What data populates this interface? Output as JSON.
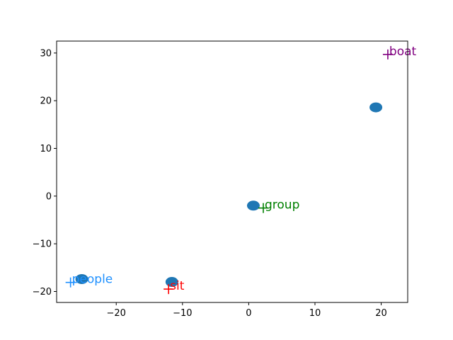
{
  "chart_data": {
    "type": "scatter",
    "title": "",
    "xlabel": "",
    "ylabel": "",
    "xlim": [
      -29,
      24
    ],
    "ylim": [
      -22.3,
      32.5
    ],
    "xticks": [
      -20,
      -10,
      0,
      10,
      20
    ],
    "yticks": [
      -20,
      -10,
      0,
      10,
      20,
      30
    ],
    "xtick_labels": [
      "−20",
      "−10",
      "0",
      "10",
      "20"
    ],
    "ytick_labels": [
      "−20",
      "−10",
      "0",
      "10",
      "20",
      "30"
    ],
    "grid": false,
    "legend": "none",
    "points": [
      {
        "x": -25.2,
        "y": -17.4
      },
      {
        "x": -11.6,
        "y": -18.0
      },
      {
        "x": 0.7,
        "y": -2.0
      },
      {
        "x": 19.2,
        "y": 18.6
      }
    ],
    "points_color": "#1f77b4",
    "words": [
      {
        "label": "people",
        "x": -26.9,
        "y": -18.1,
        "color": "#1e90ff"
      },
      {
        "label": "sit",
        "x": -12.1,
        "y": -19.5,
        "color": "#ff0000"
      },
      {
        "label": "group",
        "x": 2.2,
        "y": -2.5,
        "color": "#008000"
      },
      {
        "label": "boat",
        "x": 21.0,
        "y": 29.7,
        "color": "#800080"
      }
    ]
  }
}
